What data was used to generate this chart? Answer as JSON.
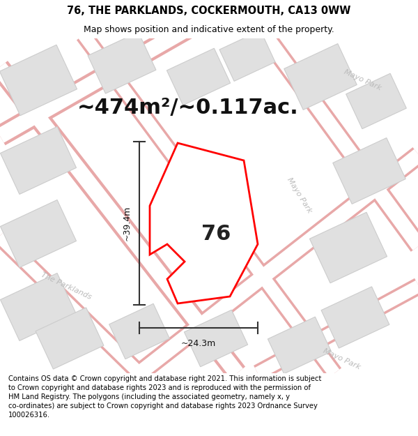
{
  "title": "76, THE PARKLANDS, COCKERMOUTH, CA13 0WW",
  "subtitle": "Map shows position and indicative extent of the property.",
  "area_text": "~474m²/~0.117ac.",
  "width_label": "~24.3m",
  "height_label": "~39.4m",
  "property_number": "76",
  "footer": "Contains OS data © Crown copyright and database right 2021. This information is subject to Crown copyright and database rights 2023 and is reproduced with the permission of HM Land Registry. The polygons (including the associated geometry, namely x, y co-ordinates) are subject to Crown copyright and database rights 2023 Ordnance Survey 100026316.",
  "map_bg": "#f2f2f2",
  "road_fill": "#ffffff",
  "road_outline": "#e8a8a8",
  "building_fill": "#e0e0e0",
  "building_outline": "#cccccc",
  "property_fill": "#ffffff",
  "property_outline": "#ff0000",
  "dim_color": "#333333",
  "street_color": "#bbbbbb",
  "title_fontsize": 10.5,
  "subtitle_fontsize": 9,
  "area_fontsize": 22,
  "number_fontsize": 22,
  "footer_fontsize": 7.2,
  "dim_fontsize": 9
}
